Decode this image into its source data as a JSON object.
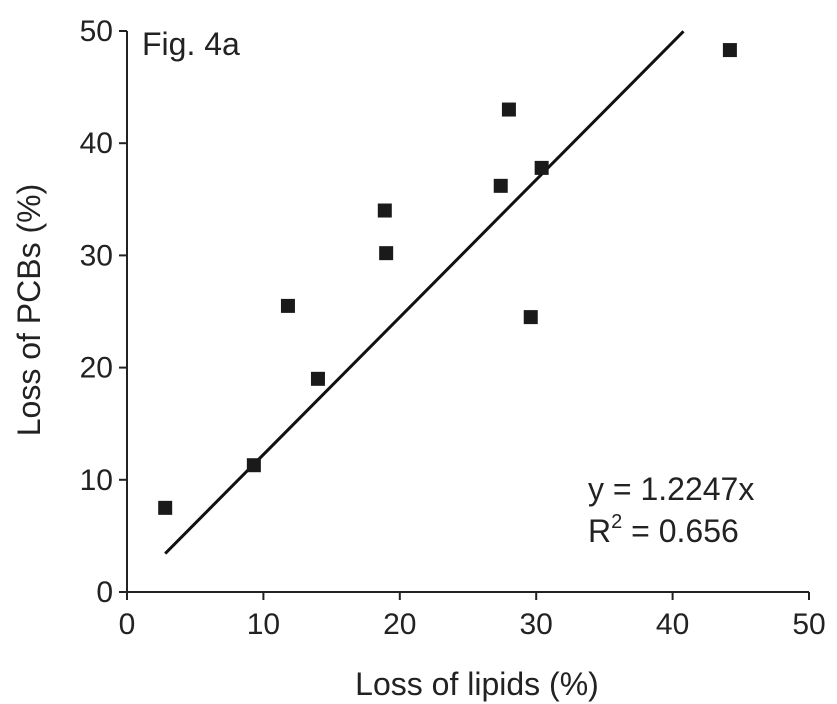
{
  "chart_data": {
    "type": "scatter",
    "title": "Fig. 4a",
    "xlabel": "Loss of lipids (%)",
    "ylabel": "Loss of PCBs (%)",
    "xlim": [
      0,
      50
    ],
    "ylim": [
      0,
      50
    ],
    "x_ticks": [
      "0",
      "10",
      "20",
      "30",
      "40",
      "50"
    ],
    "y_ticks": [
      "0",
      "10",
      "20",
      "30",
      "40",
      "50"
    ],
    "grid": false,
    "points": [
      {
        "x": 2.8,
        "y": 7.5
      },
      {
        "x": 9.3,
        "y": 11.3
      },
      {
        "x": 11.8,
        "y": 25.5
      },
      {
        "x": 14.0,
        "y": 19.0
      },
      {
        "x": 18.9,
        "y": 34.0
      },
      {
        "x": 19.0,
        "y": 30.2
      },
      {
        "x": 27.4,
        "y": 36.2
      },
      {
        "x": 28.0,
        "y": 43.0
      },
      {
        "x": 29.6,
        "y": 24.5
      },
      {
        "x": 30.4,
        "y": 37.8
      },
      {
        "x": 44.2,
        "y": 48.3
      }
    ],
    "trendline": {
      "slope": 1.2247,
      "x_start": 2.8,
      "x_end": 40.8
    },
    "annotation": {
      "equation": "y = 1.2247x",
      "r2_prefix": "R",
      "r2_sup": "2",
      "r2_suffix": " = 0.656"
    }
  }
}
